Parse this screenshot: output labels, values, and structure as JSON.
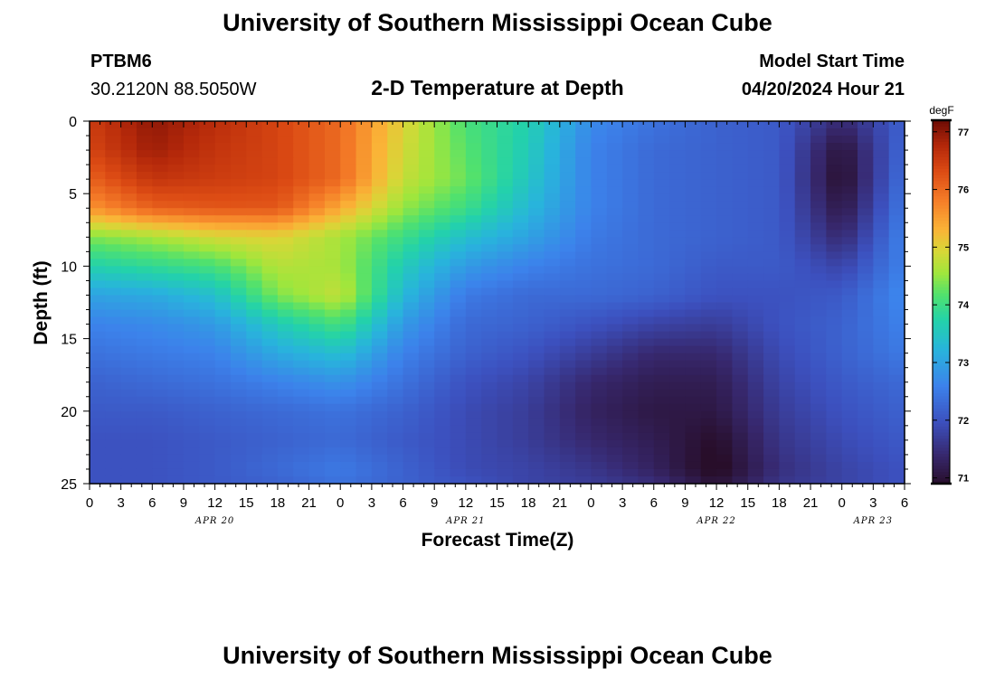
{
  "title": "University of Southern Mississippi Ocean Cube",
  "footer_title": "University of Southern Mississippi Ocean Cube",
  "station": {
    "id": "PTBM6",
    "location": "30.2120N  88.5050W"
  },
  "model": {
    "start_label": "Model Start Time",
    "start_value": "04/20/2024 Hour 21"
  },
  "chart_data": {
    "type": "heatmap",
    "title": "2-D Temperature at Depth",
    "xlabel": "Forecast Time(Z)",
    "ylabel": "Depth (ft)",
    "colorbar_label": "degF",
    "colorbar_ticks": [
      "71",
      "72",
      "73",
      "74",
      "75",
      "76",
      "77"
    ],
    "color_range": [
      70.9,
      77.2
    ],
    "x_range_hours": [
      0,
      78
    ],
    "y_range_ft": [
      0,
      25
    ],
    "y_inverted": true,
    "x_ticks": [
      "0",
      "3",
      "6",
      "9",
      "12",
      "15",
      "18",
      "21",
      "0",
      "3",
      "6",
      "9",
      "12",
      "15",
      "18",
      "21",
      "0",
      "3",
      "6",
      "9",
      "12",
      "15",
      "18",
      "21",
      "0",
      "3",
      "6"
    ],
    "date_labels": [
      {
        "label": "APR 20",
        "hour": 12
      },
      {
        "label": "APR 21",
        "hour": 36
      },
      {
        "label": "APR 22",
        "hour": 60
      },
      {
        "label": "APR 23",
        "hour": 75
      }
    ],
    "y_ticks": [
      "0",
      "5",
      "10",
      "15",
      "20",
      "25"
    ],
    "depths_ft": [
      0,
      2,
      4,
      6,
      8,
      10,
      12,
      14,
      16,
      18,
      20,
      22,
      24,
      25
    ],
    "times_h": [
      0,
      6,
      12,
      18,
      24,
      30,
      36,
      42,
      48,
      54,
      60,
      66,
      72,
      78
    ],
    "values": [
      [
        76.5,
        77.0,
        76.7,
        76.4,
        76.0,
        75.0,
        74.1,
        73.7,
        72.7,
        72.4,
        72.2,
        72.1,
        71.4,
        72.2
      ],
      [
        76.4,
        76.9,
        76.6,
        76.4,
        76.0,
        74.9,
        74.2,
        73.6,
        72.6,
        72.3,
        72.2,
        72.1,
        71.0,
        72.3
      ],
      [
        76.1,
        76.6,
        76.5,
        76.4,
        76.0,
        74.8,
        74.3,
        73.5,
        72.6,
        72.3,
        72.2,
        72.1,
        70.9,
        72.4
      ],
      [
        75.6,
        76.1,
        76.2,
        76.2,
        75.4,
        74.5,
        74.0,
        73.3,
        72.6,
        72.3,
        72.2,
        72.1,
        71.1,
        72.5
      ],
      [
        74.4,
        74.6,
        74.9,
        75.0,
        74.6,
        74.0,
        73.4,
        73.0,
        72.5,
        72.3,
        72.2,
        72.1,
        71.4,
        72.6
      ],
      [
        73.7,
        73.9,
        74.1,
        74.7,
        74.6,
        73.6,
        72.9,
        72.6,
        72.4,
        72.3,
        72.1,
        72.1,
        71.8,
        72.6
      ],
      [
        73.0,
        73.1,
        73.4,
        74.4,
        74.8,
        73.3,
        72.5,
        72.3,
        72.3,
        72.2,
        72.0,
        72.0,
        72.1,
        72.7
      ],
      [
        72.6,
        72.7,
        72.9,
        73.6,
        74.1,
        72.9,
        72.3,
        72.2,
        72.0,
        71.8,
        71.7,
        72.0,
        72.2,
        72.6
      ],
      [
        72.4,
        72.5,
        72.6,
        73.1,
        73.4,
        72.6,
        72.2,
        72.0,
        71.7,
        71.4,
        71.4,
        71.9,
        72.2,
        72.5
      ],
      [
        72.2,
        72.3,
        72.4,
        72.6,
        72.8,
        72.4,
        72.0,
        71.8,
        71.4,
        71.2,
        71.2,
        71.8,
        72.1,
        72.3
      ],
      [
        72.1,
        72.1,
        72.2,
        72.3,
        72.4,
        72.2,
        71.9,
        71.7,
        71.3,
        71.1,
        71.1,
        71.7,
        72.0,
        72.2
      ],
      [
        72.0,
        72.0,
        72.1,
        72.2,
        72.3,
        72.1,
        71.9,
        71.7,
        71.4,
        71.2,
        70.9,
        71.6,
        71.9,
        72.1
      ],
      [
        72.0,
        72.0,
        72.1,
        72.3,
        72.5,
        72.2,
        71.9,
        71.8,
        71.6,
        71.3,
        70.8,
        71.5,
        71.8,
        72.0
      ],
      [
        72.0,
        72.0,
        72.1,
        72.2,
        72.4,
        72.2,
        72.0,
        71.8,
        71.7,
        71.5,
        71.0,
        71.6,
        71.8,
        72.0
      ]
    ]
  }
}
